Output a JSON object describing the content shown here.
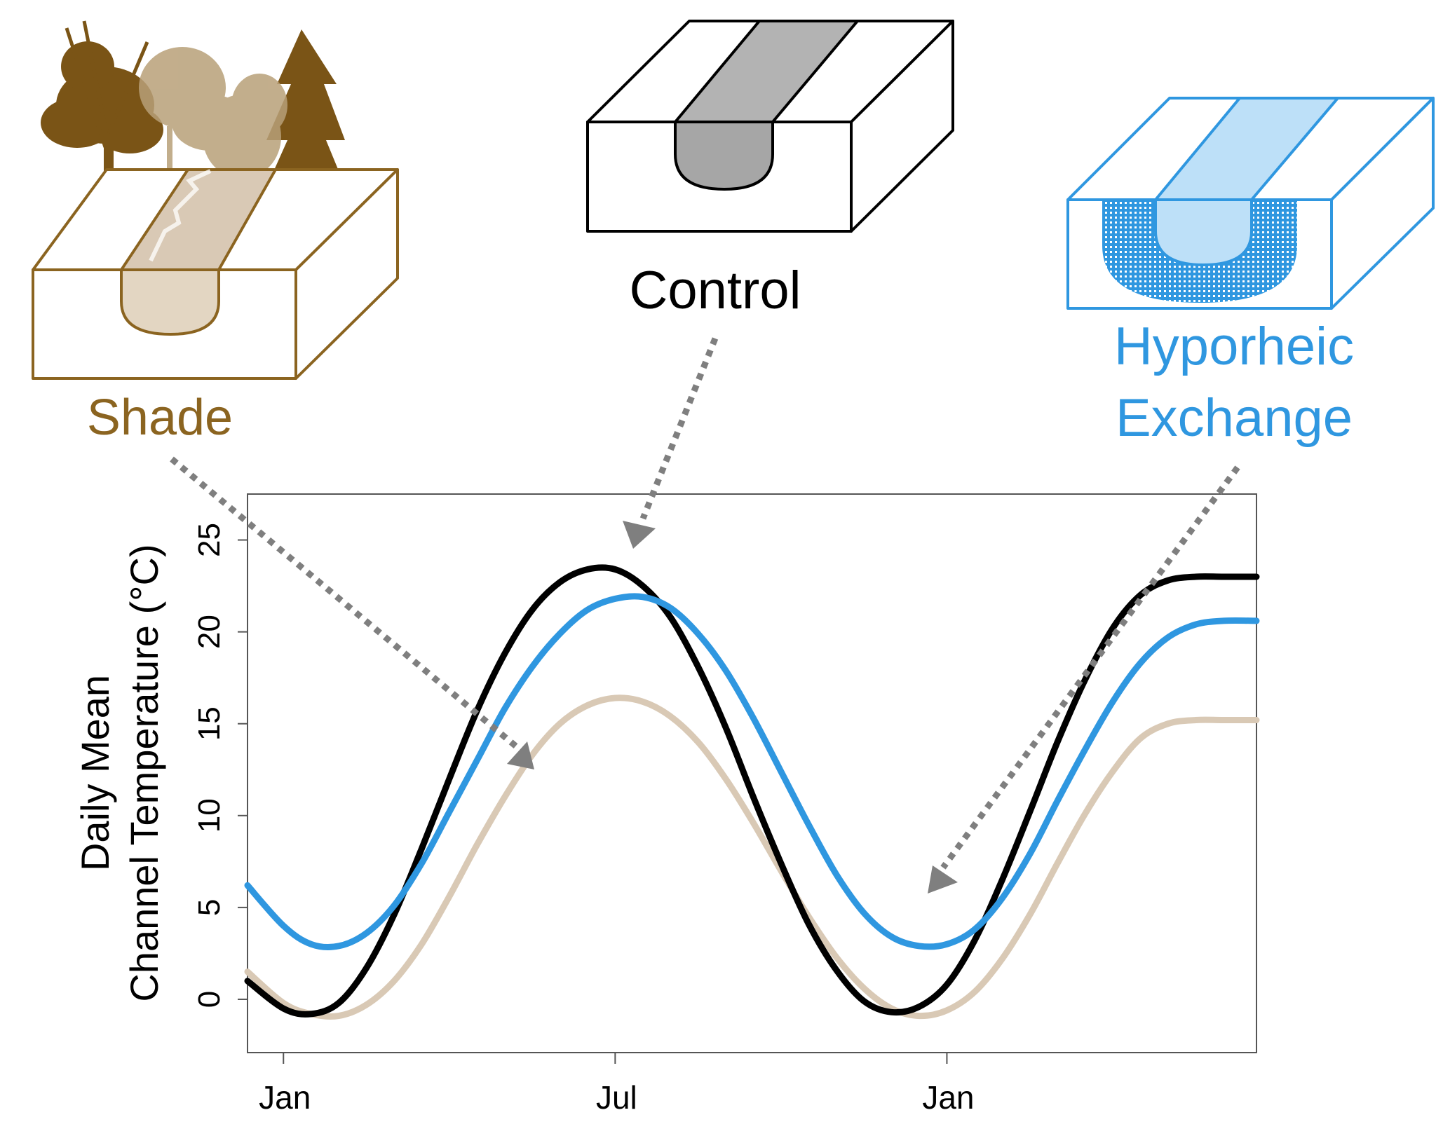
{
  "figure": {
    "labels": {
      "shade": "Shade",
      "control": "Control",
      "hyporheic_line1": "Hyporheic",
      "hyporheic_line2": "Exchange"
    },
    "colors": {
      "control": "#000000",
      "shade": "#d9c9b5",
      "shade_diagram": "#8b6420",
      "hyporheic": "#2f97e0",
      "arrow": "#7f7f7f"
    }
  },
  "chart_data": {
    "type": "line",
    "title": "",
    "xlabel": "",
    "ylabel_line1": "Daily Mean",
    "ylabel_line2": "Channel Temperature (°C)",
    "x_unit": "month (0 = Jan 1, 6 = Jul 1, 12 = Jan 1 of next year)",
    "xlim": [
      -0.65,
      17.6
    ],
    "ylim": [
      -2.9,
      27.5
    ],
    "xticks": [
      {
        "value": 0,
        "label": "Jan"
      },
      {
        "value": 6,
        "label": "Jul"
      },
      {
        "value": 12,
        "label": "Jan"
      }
    ],
    "yticks": [
      0,
      5,
      10,
      15,
      20,
      25
    ],
    "series": [
      {
        "name": "Control",
        "color": "#000000",
        "x": [
          -0.65,
          0,
          0.5,
          1,
          1.5,
          2,
          2.5,
          3,
          3.5,
          4,
          4.5,
          5,
          5.5,
          6,
          6.5,
          7,
          7.5,
          8,
          8.5,
          9,
          9.5,
          10,
          10.5,
          11,
          11.5,
          12,
          12.5,
          13,
          13.5,
          14,
          14.5,
          15,
          15.5,
          16,
          16.5,
          17,
          17.6
        ],
        "values": [
          1.0,
          -0.5,
          -0.8,
          -0.2,
          1.7,
          4.6,
          8.2,
          12.0,
          15.7,
          18.8,
          21.2,
          22.7,
          23.4,
          23.4,
          22.5,
          20.8,
          18.1,
          14.8,
          11.0,
          7.4,
          4.1,
          1.6,
          -0.1,
          -0.7,
          -0.4,
          0.8,
          3.2,
          6.5,
          10.2,
          14.0,
          17.4,
          20.2,
          22.0,
          22.8,
          23.0,
          23.0,
          23.0
        ]
      },
      {
        "name": "Hyporheic Exchange",
        "color": "#2f97e0",
        "x": [
          -0.65,
          0,
          0.5,
          1,
          1.5,
          2,
          2.5,
          3,
          3.5,
          4,
          4.5,
          5,
          5.5,
          6,
          6.5,
          7,
          7.5,
          8,
          8.5,
          9,
          9.5,
          10,
          10.5,
          11,
          11.5,
          12,
          12.5,
          13,
          13.5,
          14,
          14.5,
          15,
          15.5,
          16,
          16.5,
          17,
          17.6
        ],
        "values": [
          6.2,
          4.0,
          3.0,
          2.9,
          3.6,
          5.1,
          7.4,
          10.2,
          13.0,
          15.8,
          18.1,
          19.9,
          21.2,
          21.8,
          21.9,
          21.3,
          19.9,
          17.9,
          15.3,
          12.4,
          9.5,
          6.8,
          4.7,
          3.4,
          2.9,
          3.0,
          3.8,
          5.5,
          7.9,
          10.8,
          13.6,
          16.2,
          18.3,
          19.7,
          20.4,
          20.6,
          20.6
        ]
      },
      {
        "name": "Shade",
        "color": "#d9c9b5",
        "x": [
          -0.65,
          0,
          0.5,
          1,
          1.5,
          2,
          2.5,
          3,
          3.5,
          4,
          4.5,
          5,
          5.5,
          6,
          6.5,
          7,
          7.5,
          8,
          8.5,
          9,
          9.5,
          10,
          10.5,
          11,
          11.5,
          12,
          12.5,
          13,
          13.5,
          14,
          14.5,
          15,
          15.5,
          16,
          16.5,
          17,
          17.6
        ],
        "values": [
          1.5,
          -0.2,
          -0.8,
          -0.9,
          -0.3,
          1.0,
          3.0,
          5.6,
          8.4,
          11.0,
          13.3,
          15.0,
          16.0,
          16.4,
          16.2,
          15.4,
          14.0,
          12.0,
          9.6,
          7.0,
          4.5,
          2.3,
          0.6,
          -0.5,
          -0.9,
          -0.6,
          0.4,
          2.2,
          4.6,
          7.4,
          10.1,
          12.4,
          14.2,
          15.0,
          15.2,
          15.2,
          15.2
        ]
      }
    ],
    "annotations": [
      {
        "text": "Shade",
        "points_to": "Shade curve in spring (~x=3.5, y=12)"
      },
      {
        "text": "Control",
        "points_to": "Control curve summer peak (~x=6, y=24)"
      },
      {
        "text": "Hyporheic Exchange",
        "points_to": "Hyporheic curve winter low (~x=12, y=6)"
      }
    ]
  }
}
